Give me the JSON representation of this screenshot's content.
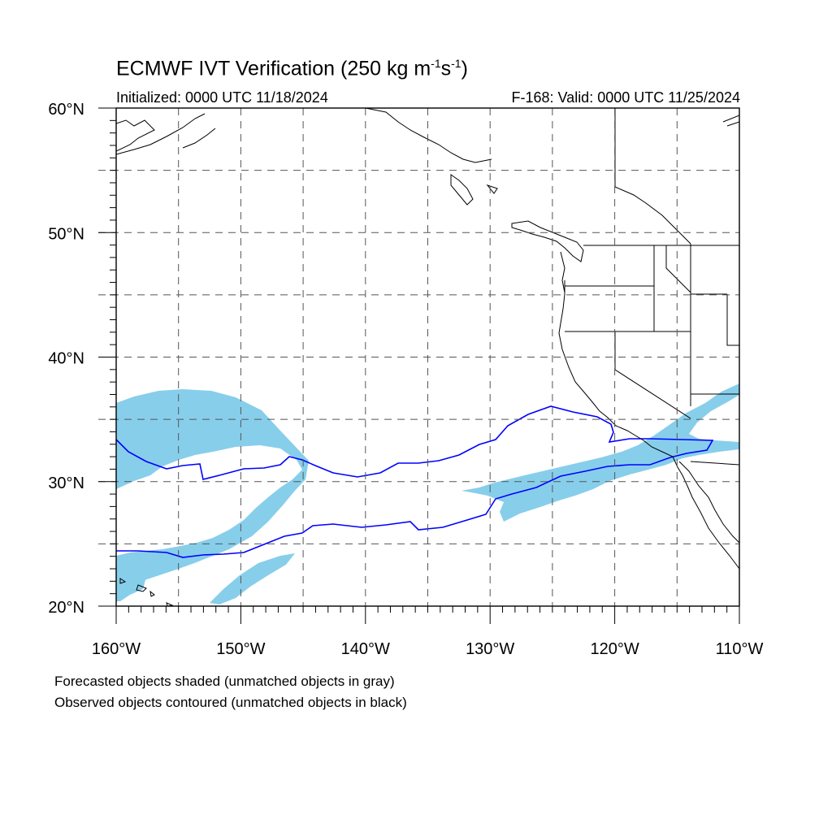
{
  "title": {
    "prefix": "ECMWF IVT Verification (250 kg m",
    "sup1": "-1",
    "mid": "s",
    "sup2": "-1",
    "suffix": ")"
  },
  "subtitle": {
    "left": "Initialized: 0000 UTC 11/18/2024",
    "right": "F-168: Valid: 0000 UTC 11/25/2024"
  },
  "map": {
    "lon_range": [
      -160,
      -110
    ],
    "lat_range": [
      20,
      60
    ],
    "x_ticks": [
      {
        "lon": -160,
        "label": "160°W"
      },
      {
        "lon": -150,
        "label": "150°W"
      },
      {
        "lon": -140,
        "label": "140°W"
      },
      {
        "lon": -130,
        "label": "130°W"
      },
      {
        "lon": -120,
        "label": "120°W"
      },
      {
        "lon": -110,
        "label": "110°W"
      }
    ],
    "y_ticks": [
      {
        "lat": 60,
        "label": "60°N"
      },
      {
        "lat": 50,
        "label": "50°N"
      },
      {
        "lat": 40,
        "label": "40°N"
      },
      {
        "lat": 30,
        "label": "30°N"
      },
      {
        "lat": 20,
        "label": "20°N"
      }
    ],
    "grid_lons": [
      -155,
      -150,
      -145,
      -140,
      -135,
      -130,
      -125,
      -120,
      -115
    ],
    "grid_lats": [
      25,
      30,
      35,
      40,
      45,
      50,
      55
    ],
    "colors": {
      "forecast_fill": "#87ceeb",
      "observed_contour": "#0000ff",
      "coastline": "#000000"
    }
  },
  "notes": {
    "line1": "Forecasted objects shaded (unmatched objects in gray)",
    "line2": "Observed objects contoured (unmatched objects in black)"
  }
}
